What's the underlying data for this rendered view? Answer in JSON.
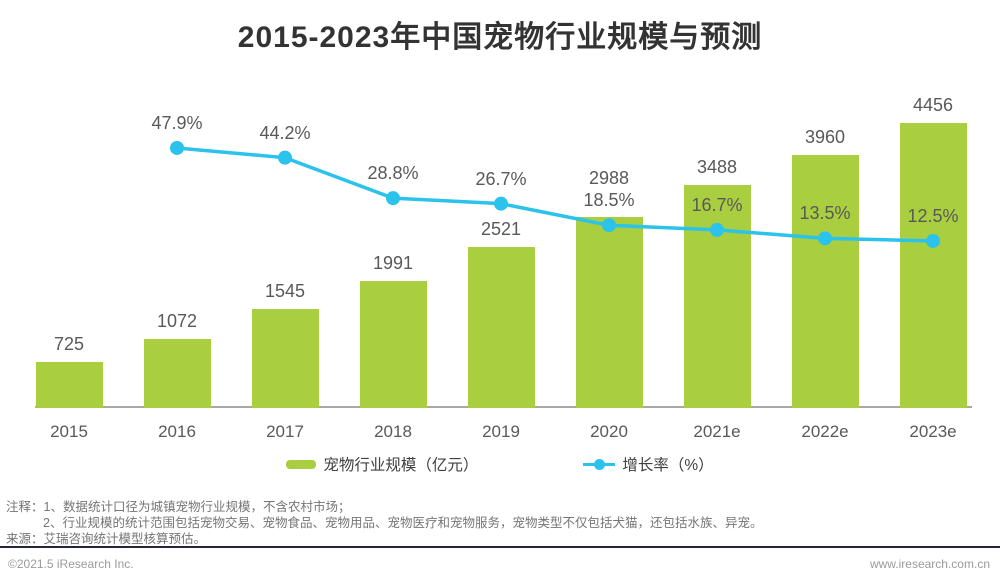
{
  "page": {
    "title": "2015-2023年中国宠物行业规模与预测"
  },
  "chart_data": {
    "type": "bar+line",
    "title": "2015-2023年中国宠物行业规模与预测",
    "categories": [
      "2015",
      "2016",
      "2017",
      "2018",
      "2019",
      "2020",
      "2021e",
      "2022e",
      "2023e"
    ],
    "series": [
      {
        "name": "宠物行业规模（亿元）",
        "type": "bar",
        "color": "#a9ce3f",
        "values": [
          725,
          1072,
          1545,
          1991,
          2521,
          2988,
          3488,
          3960,
          4456
        ]
      },
      {
        "name": "增长率（%）",
        "type": "line",
        "color": "#2bc2ec",
        "values": [
          null,
          47.9,
          44.2,
          28.8,
          26.7,
          18.5,
          16.7,
          13.5,
          12.5
        ]
      }
    ],
    "ylabel": "",
    "xlabel": "",
    "ylim_bar": [
      0,
      4456
    ],
    "grid": false,
    "legend_position": "bottom",
    "data_labels_shown": true
  },
  "notes": {
    "line1": "注释：1、数据统计口径为城镇宠物行业规模，不含农村市场；",
    "line2": "2、行业规模的统计范围包括宠物交易、宠物食品、宠物用品、宠物医疗和宠物服务，宠物类型不仅包括犬猫，还包括水族、异宠。",
    "line3": "来源：艾瑞咨询统计模型核算预估。"
  },
  "footer": {
    "left": "©2021.5 iResearch Inc.",
    "right": "www.iresearch.com.cn"
  },
  "colors": {
    "bar": "#a9ce3f",
    "line": "#2bc2ec",
    "label_gray": "#595959",
    "axis_gray": "#a8a8a8"
  }
}
